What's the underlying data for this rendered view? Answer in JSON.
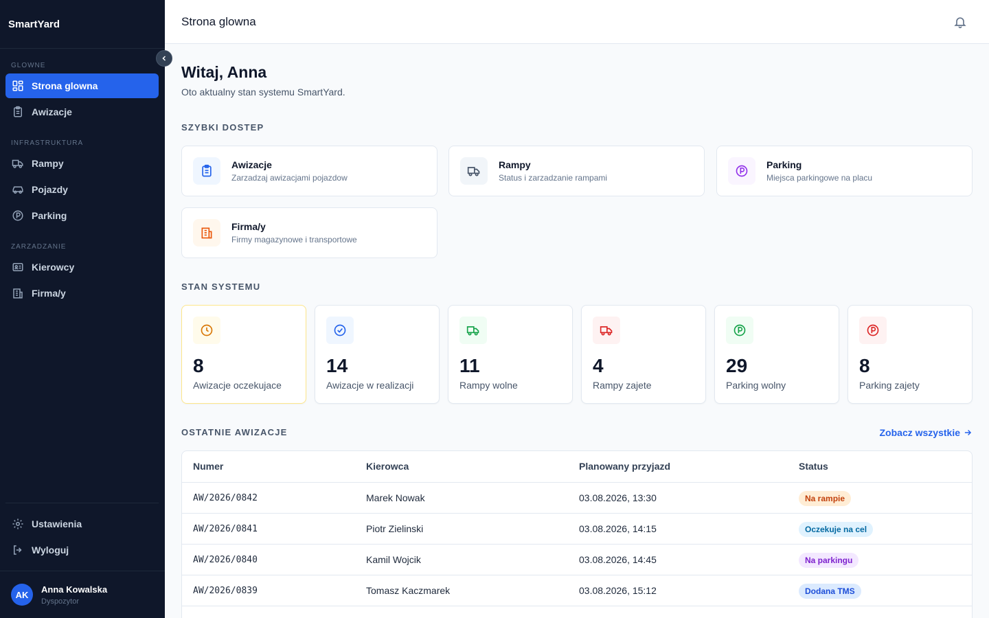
{
  "app": {
    "name": "SmartYard"
  },
  "sidebar": {
    "sections": [
      {
        "title": "GLOWNE"
      },
      {
        "title": "INFRASTRUKTURA"
      },
      {
        "title": "ZARZADZANIE"
      }
    ],
    "items": [
      {
        "label": "Strona glowna",
        "icon": "grid-icon",
        "active": true
      },
      {
        "label": "Awizacje",
        "icon": "clipboard-icon"
      },
      {
        "label": "Rampy",
        "icon": "truck-icon"
      },
      {
        "label": "Pojazdy",
        "icon": "car-icon"
      },
      {
        "label": "Parking",
        "icon": "parking-icon"
      },
      {
        "label": "Kierowcy",
        "icon": "id-card-icon"
      },
      {
        "label": "Firma/y",
        "icon": "building-icon"
      }
    ],
    "bottom": [
      {
        "label": "Ustawienia",
        "icon": "gear-icon"
      },
      {
        "label": "Wyloguj",
        "icon": "logout-icon"
      }
    ],
    "user": {
      "initials": "AK",
      "name": "Anna Kowalska",
      "role": "Dyspozytor"
    }
  },
  "header": {
    "title": "Strona glowna"
  },
  "main": {
    "greeting": "Witaj, Anna",
    "subtitle": "Oto aktualny stan systemu SmartYard.",
    "quick_title": "SZYBKI DOSTEP",
    "quick": [
      {
        "title": "Awizacje",
        "desc": "Zarzadzaj awizacjami pojazdow",
        "color": "#2563eb",
        "bg": "#eff6ff"
      },
      {
        "title": "Rampy",
        "desc": "Status i zarzadzanie rampami",
        "color": "#475569",
        "bg": "#f1f5f9"
      },
      {
        "title": "Parking",
        "desc": "Miejsca parkingowe na placu",
        "color": "#9333ea",
        "bg": "#faf5ff"
      },
      {
        "title": "Firma/y",
        "desc": "Firmy magazynowe i transportowe",
        "color": "#ea580c",
        "bg": "#fff7ed"
      }
    ],
    "status_title": "STAN SYSTEMU",
    "stats": [
      {
        "value": "8",
        "label": "Awizacje oczekujace",
        "color": "#d97706",
        "bg": "#fffbeb",
        "border": "#fde68a"
      },
      {
        "value": "14",
        "label": "Awizacje w realizacji",
        "color": "#2563eb",
        "bg": "#eff6ff",
        "border": "#e2e8f0"
      },
      {
        "value": "11",
        "label": "Rampy wolne",
        "color": "#16a34a",
        "bg": "#f0fdf4",
        "border": "#e2e8f0"
      },
      {
        "value": "4",
        "label": "Rampy zajete",
        "color": "#dc2626",
        "bg": "#fef2f2",
        "border": "#e2e8f0"
      },
      {
        "value": "29",
        "label": "Parking wolny",
        "color": "#16a34a",
        "bg": "#f0fdf4",
        "border": "#e2e8f0"
      },
      {
        "value": "8",
        "label": "Parking zajety",
        "color": "#dc2626",
        "bg": "#fef2f2",
        "border": "#e2e8f0"
      }
    ],
    "recent_title": "OSTATNIE AWIZACJE",
    "see_all": "Zobacz wszystkie",
    "table": {
      "headers": [
        "Numer",
        "Kierowca",
        "Planowany przyjazd",
        "Status"
      ],
      "rows": [
        {
          "numer": "AW/2026/0842",
          "kierowca": "Marek Nowak",
          "przyjazd": "03.08.2026, 13:30",
          "status": "Na rampie",
          "status_color": "#c2410c",
          "status_bg": "#ffedd5"
        },
        {
          "numer": "AW/2026/0841",
          "kierowca": "Piotr Zielinski",
          "przyjazd": "03.08.2026, 14:15",
          "status": "Oczekuje na cel",
          "status_color": "#0369a1",
          "status_bg": "#e0f2fe"
        },
        {
          "numer": "AW/2026/0840",
          "kierowca": "Kamil Wojcik",
          "przyjazd": "03.08.2026, 14:45",
          "status": "Na parkingu",
          "status_color": "#7e22ce",
          "status_bg": "#f3e8ff"
        },
        {
          "numer": "AW/2026/0839",
          "kierowca": "Tomasz Kaczmarek",
          "przyjazd": "03.08.2026, 15:12",
          "status": "Dodana TMS",
          "status_color": "#1d4ed8",
          "status_bg": "#dbeafe"
        }
      ]
    }
  }
}
